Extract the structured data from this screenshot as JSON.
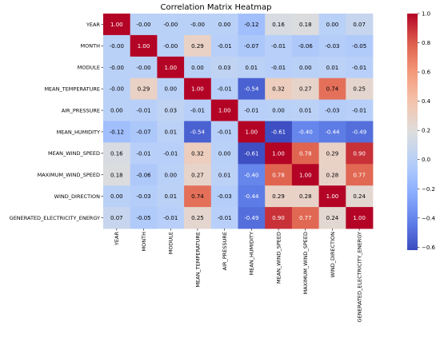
{
  "chart_data": {
    "type": "heatmap",
    "title": "Correlation Matrix Heatmap",
    "labels": [
      "YEAR",
      "MONTH",
      "MODULE",
      "MEAN_TEMPERATURE",
      "AIR_PRESSURE",
      "MEAN_HUMIDITY",
      "MEAN_WIND_SPEED",
      "MAXIMUM_WIND_SPEED",
      "WIND_DIRECTION",
      "GENERATED_ELECTRICITY_ENERGY"
    ],
    "cell_labels": [
      [
        "1.00",
        "-0.00",
        "-0.00",
        "-0.00",
        "0.00",
        "-0.12",
        "0.16",
        "0.18",
        "0.00",
        "0.07"
      ],
      [
        "-0.00",
        "1.00",
        "-0.00",
        "0.29",
        "-0.01",
        "-0.07",
        "-0.01",
        "-0.06",
        "-0.03",
        "-0.05"
      ],
      [
        "-0.00",
        "-0.00",
        "1.00",
        "0.00",
        "0.03",
        "0.01",
        "-0.01",
        "0.00",
        "0.01",
        "-0.01"
      ],
      [
        "-0.00",
        "0.29",
        "0.00",
        "1.00",
        "-0.01",
        "-0.54",
        "0.32",
        "0.27",
        "0.74",
        "0.25"
      ],
      [
        "0.00",
        "-0.01",
        "0.03",
        "-0.01",
        "1.00",
        "-0.01",
        "0.00",
        "0.01",
        "-0.03",
        "-0.01"
      ],
      [
        "-0.12",
        "-0.07",
        "0.01",
        "-0.54",
        "-0.01",
        "1.00",
        "-0.61",
        "-0.40",
        "-0.44",
        "-0.49"
      ],
      [
        "0.16",
        "-0.01",
        "-0.01",
        "0.32",
        "0.00",
        "-0.61",
        "1.00",
        "0.78",
        "0.29",
        "0.90"
      ],
      [
        "0.18",
        "-0.06",
        "0.00",
        "0.27",
        "0.01",
        "-0.40",
        "0.78",
        "1.00",
        "0.28",
        "0.77"
      ],
      [
        "0.00",
        "-0.03",
        "0.01",
        "0.74",
        "-0.03",
        "-0.44",
        "0.29",
        "0.28",
        "1.00",
        "0.24"
      ],
      [
        "0.07",
        "-0.05",
        "-0.01",
        "0.25",
        "-0.01",
        "-0.49",
        "0.90",
        "0.77",
        "0.24",
        "1.00"
      ]
    ],
    "colormap": "coolwarm",
    "colorbar": {
      "range": [
        -0.62,
        1.0
      ],
      "ticks": [
        1.0,
        0.8,
        0.6,
        0.4,
        0.2,
        0.0,
        -0.2,
        -0.4,
        -0.6
      ],
      "tick_labels": [
        "1.0",
        "0.8",
        "0.6",
        "0.4",
        "0.2",
        "0.0",
        "−0.2",
        "−0.4",
        "−0.6"
      ]
    }
  }
}
